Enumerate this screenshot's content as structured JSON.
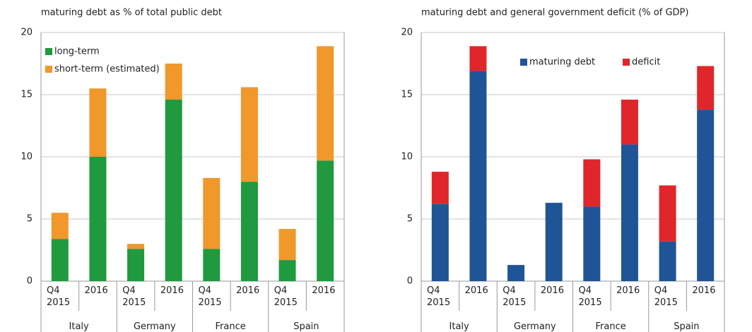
{
  "chart_data": [
    {
      "type": "stacked_bar",
      "title": "maturing debt as % of total public debt",
      "categories": [
        "Q4\n2015",
        "2016",
        "Q4\n2015",
        "2016",
        "Q4\n2015",
        "2016",
        "Q4\n2015",
        "2016"
      ],
      "groups": [
        "Italy",
        "Germany",
        "France",
        "Spain"
      ],
      "series": [
        {
          "name": "long-term",
          "color": "#1f9a3e",
          "values": [
            3.4,
            10,
            2.6,
            14.6,
            2.6,
            8.0,
            1.7,
            9.7
          ]
        },
        {
          "name": "short-term (estimated)",
          "color": "#f0982a",
          "values": [
            2.1,
            5.5,
            0.4,
            2.9,
            5.7,
            7.6,
            2.5,
            9.2
          ]
        }
      ],
      "ylim": [
        0,
        20
      ],
      "yticks": [
        0,
        5,
        10,
        15,
        20
      ],
      "grid": true,
      "legend": "upper left"
    },
    {
      "type": "stacked_bar",
      "title": "maturing debt and general government deficit (% of GDP)",
      "categories": [
        "Q4\n2015",
        "2016",
        "Q4\n2015",
        "2016",
        "Q4\n2015",
        "2016",
        "Q4\n2015",
        "2016"
      ],
      "groups": [
        "Italy",
        "Germany",
        "France",
        "Spain"
      ],
      "series": [
        {
          "name": "maturing debt",
          "color": "#1f5596",
          "values": [
            6.2,
            16.9,
            1.3,
            6.3,
            6.0,
            11.0,
            3.2,
            13.8
          ]
        },
        {
          "name": "deficit",
          "color": "#e0262b",
          "values": [
            2.6,
            2.0,
            0,
            0,
            3.8,
            3.6,
            4.5,
            3.5
          ]
        }
      ],
      "ylim": [
        0,
        20
      ],
      "yticks": [
        0,
        5,
        10,
        15,
        20
      ],
      "grid": true,
      "legend": "upper center"
    }
  ]
}
